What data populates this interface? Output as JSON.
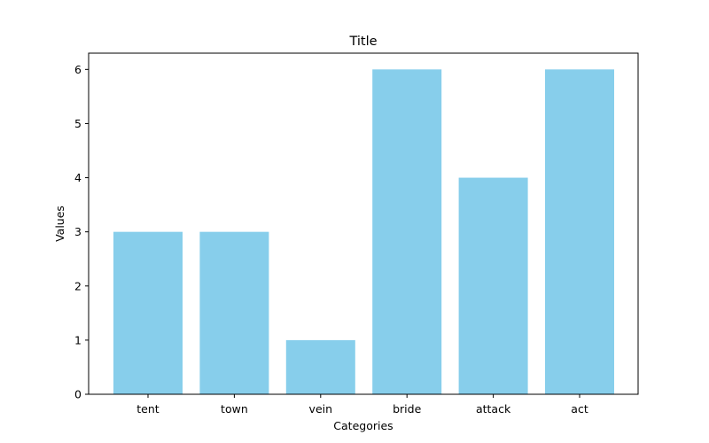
{
  "chart_data": {
    "type": "bar",
    "title": "Title",
    "xlabel": "Categories",
    "ylabel": "Values",
    "categories": [
      "tent",
      "town",
      "vein",
      "bride",
      "attack",
      "act"
    ],
    "values": [
      3,
      3,
      1,
      6,
      4,
      6
    ],
    "ylim": [
      0,
      6.3
    ],
    "yticks": [
      0,
      1,
      2,
      3,
      4,
      5,
      6
    ],
    "bar_color": "#87CEEB",
    "grid": false,
    "legend": "none"
  }
}
